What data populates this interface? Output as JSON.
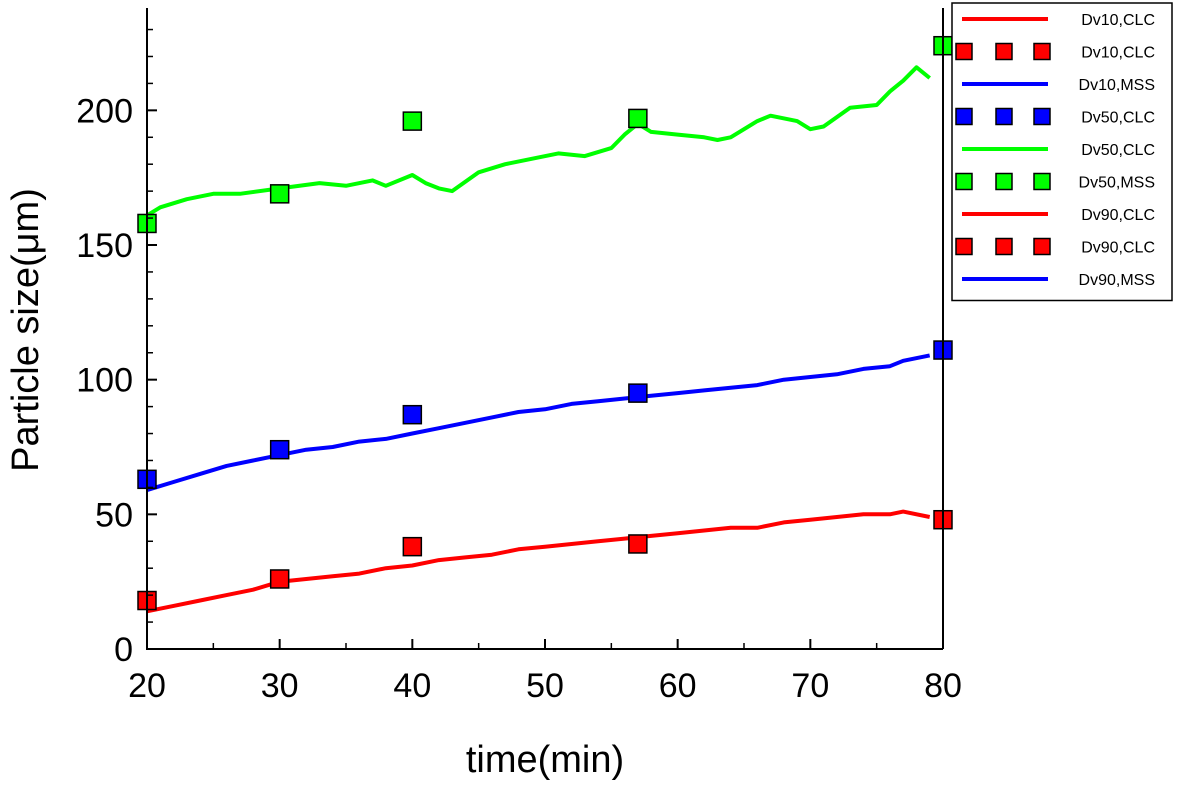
{
  "chart_data": {
    "type": "line",
    "xlabel": "time(min)",
    "ylabel": "Particle size(μm)",
    "xlim": [
      20,
      80
    ],
    "ylim": [
      0,
      238
    ],
    "x_ticks": [
      20,
      30,
      40,
      50,
      60,
      70,
      80
    ],
    "y_ticks": [
      0,
      50,
      100,
      150,
      200
    ],
    "grid": false,
    "legend_position": "top-right outside plot",
    "series": [
      {
        "name": "Dv10,CLC",
        "kind": "line",
        "color": "#ff0000",
        "x": [
          20,
          22,
          24,
          26,
          28,
          30,
          32,
          34,
          36,
          38,
          40,
          42,
          44,
          46,
          48,
          50,
          52,
          54,
          56,
          58,
          60,
          62,
          64,
          66,
          68,
          70,
          72,
          74,
          76,
          77,
          79
        ],
        "y": [
          14,
          16,
          18,
          20,
          22,
          25,
          26,
          27,
          28,
          30,
          31,
          33,
          34,
          35,
          37,
          38,
          39,
          40,
          41,
          42,
          43,
          44,
          45,
          45,
          47,
          48,
          49,
          50,
          50,
          51,
          49
        ]
      },
      {
        "name": "Dv10,CLC",
        "kind": "markers",
        "color": "#ff0000",
        "x": [
          20,
          30,
          40,
          57,
          80
        ],
        "y": [
          18,
          26,
          38,
          39,
          48
        ]
      },
      {
        "name": "Dv10,MSS",
        "kind": "line",
        "color": "#0000ff",
        "x": [
          20,
          22,
          24,
          26,
          28,
          30,
          32,
          34,
          36,
          38,
          40,
          42,
          44,
          46,
          48,
          50,
          52,
          54,
          56,
          58,
          60,
          62,
          64,
          66,
          68,
          70,
          72,
          74,
          76,
          77,
          79
        ],
        "y": [
          59,
          62,
          65,
          68,
          70,
          72,
          74,
          75,
          77,
          78,
          80,
          82,
          84,
          86,
          88,
          89,
          91,
          92,
          93,
          94,
          95,
          96,
          97,
          98,
          100,
          101,
          102,
          104,
          105,
          107,
          109
        ]
      },
      {
        "name": "Dv50,CLC",
        "kind": "markers",
        "color": "#0000ff",
        "x": [
          20,
          30,
          40,
          57,
          80
        ],
        "y": [
          63,
          74,
          87,
          95,
          111
        ]
      },
      {
        "name": "Dv50,CLC",
        "kind": "line",
        "color": "#00ff00",
        "x": [
          20,
          21,
          23,
          25,
          27,
          30,
          33,
          35,
          37,
          38,
          40,
          41,
          42,
          43,
          45,
          47,
          49,
          51,
          53,
          55,
          56,
          57,
          58,
          60,
          62,
          63,
          64,
          66,
          67,
          69,
          70,
          71,
          73,
          75,
          76,
          77,
          78,
          79
        ],
        "y": [
          161,
          164,
          167,
          169,
          169,
          171,
          173,
          172,
          174,
          172,
          176,
          173,
          171,
          170,
          177,
          180,
          182,
          184,
          183,
          186,
          191,
          195,
          192,
          191,
          190,
          189,
          190,
          196,
          198,
          196,
          193,
          194,
          201,
          202,
          207,
          211,
          216,
          212
        ]
      },
      {
        "name": "Dv50,MSS",
        "kind": "markers",
        "color": "#00ff00",
        "x": [
          20,
          30,
          40,
          57,
          80
        ],
        "y": [
          158,
          169,
          196,
          197,
          224
        ]
      },
      {
        "name": "Dv90,CLC",
        "kind": "line",
        "color": "#ff0000",
        "x": [],
        "y": []
      },
      {
        "name": "Dv90,CLC",
        "kind": "markers",
        "color": "#ff0000",
        "x": [],
        "y": []
      },
      {
        "name": "Dv90,MSS",
        "kind": "line",
        "color": "#0000ff",
        "x": [],
        "y": []
      }
    ]
  }
}
